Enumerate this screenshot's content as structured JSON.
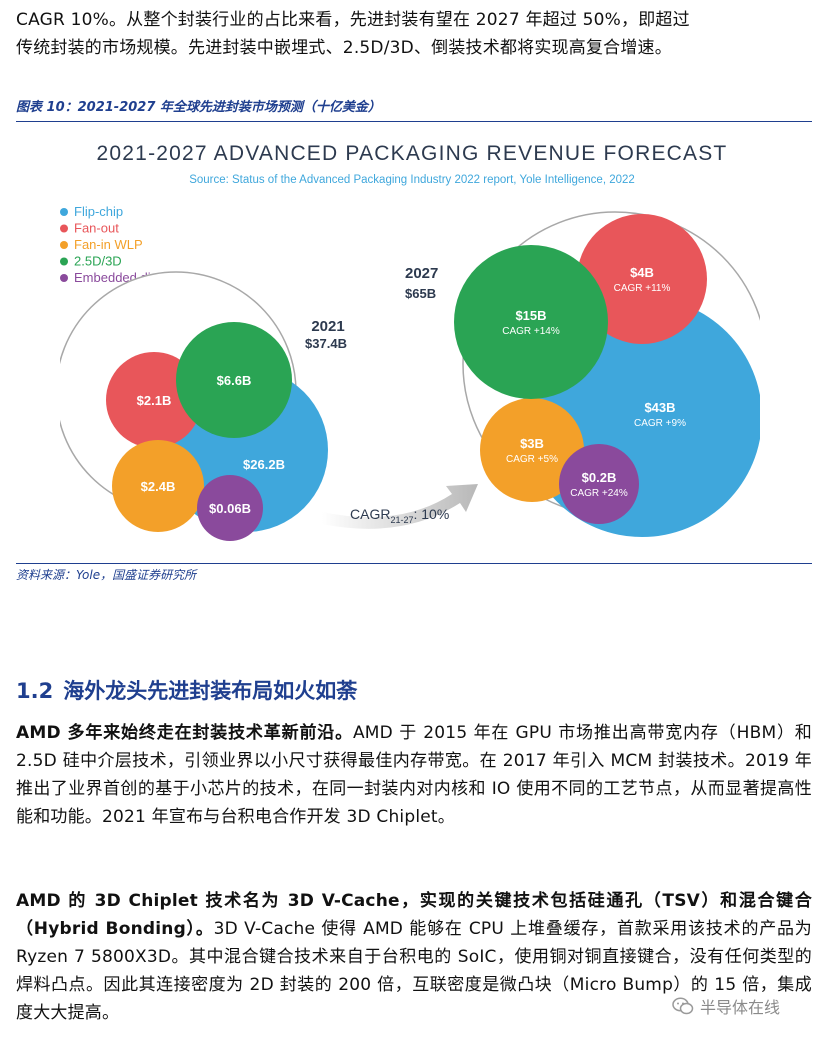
{
  "intro": {
    "line1": "CAGR 10%。从整个封装行业的占比来看，先进封装有望在 2027 年超过 50%，即超过",
    "line2": "传统封装的市场规模。先进封装中嵌埋式、2.5D/3D、倒装技术都将实现高复合增速。"
  },
  "figure": {
    "caption": "图表 10：2021-2027 年全球先进封装市场预测（十亿美金）",
    "source": "资料来源：Yole，国盛证券研究所"
  },
  "chart_data": {
    "type": "bubble",
    "title": "2021-2027 ADVANCED PACKAGING REVENUE FORECAST",
    "subtitle": "Source: Status of the Advanced Packaging Industry 2022 report, Yole Intelligence, 2022",
    "legend_position": "top-left",
    "series": [
      {
        "name": "Flip-chip",
        "color": "#3fa7dc",
        "v2021_label": "$26.2B",
        "v2021": 26.2,
        "v2027_label": "$43B",
        "v2027": 43,
        "cagr": "CAGR +9%"
      },
      {
        "name": "Fan-out",
        "color": "#e8565a",
        "v2021_label": "$2.1B",
        "v2021": 2.1,
        "v2027_label": "$4B",
        "v2027": 4,
        "cagr": "CAGR +11%"
      },
      {
        "name": "Fan-in WLP",
        "color": "#f3a029",
        "v2021_label": "$2.4B",
        "v2021": 2.4,
        "v2027_label": "$3B",
        "v2027": 3,
        "cagr": "CAGR +5%"
      },
      {
        "name": "2.5D/3D",
        "color": "#2aa454",
        "v2021_label": "$6.6B",
        "v2021": 6.6,
        "v2027_label": "$15B",
        "v2027": 15,
        "cagr": "CAGR +14%"
      },
      {
        "name": "Embedded die",
        "color": "#8a4a9c",
        "v2021_label": "$0.06B",
        "v2021": 0.06,
        "v2027_label": "$0.2B",
        "v2027": 0.2,
        "cagr": "CAGR +24%"
      }
    ],
    "totals": [
      {
        "year": "2021",
        "value_label": "$37.4B",
        "value": 37.4
      },
      {
        "year": "2027",
        "value_label": "$65B",
        "value": 65
      }
    ],
    "cagr_arrow": {
      "prefix": "CAGR",
      "subscript": "21-27",
      "value": ": 10%"
    }
  },
  "section": {
    "number": "1.2",
    "title": "海外龙头先进封装布局如火如荼"
  },
  "p1": {
    "lead": "AMD 多年来始终走在封装技术革新前沿。",
    "body": "AMD 于 2015 年在 GPU 市场推出高带宽内存（HBM）和 2.5D 硅中介层技术，引领业界以小尺寸获得最佳内存带宽。在 2017 年引入 MCM 封装技术。2019 年推出了业界首创的基于小芯片的技术，在同一封装内对内核和 IO 使用不同的工艺节点，从而显著提高性能和功能。2021 年宣布与台积电合作开发 3D Chiplet。"
  },
  "p2": {
    "lead": "AMD 的 3D Chiplet 技术名为 3D V-Cache，实现的关键技术包括硅通孔（TSV）和混合键合（Hybrid Bonding）。",
    "body": "3D V-Cache 使得 AMD 能够在 CPU 上堆叠缓存，首款采用该技术的产品为 Ryzen 7 5800X3D。其中混合键合技术来自于台积电的 SoIC，使用铜对铜直接键合，没有任何类型的焊料凸点。因此其连接密度为 2D 封装的 200 倍，互联密度是微凸块（Micro Bump）的 15 倍，集成度大大提高。"
  },
  "watermark": {
    "icon": "wechat-icon",
    "text": "半导体在线"
  }
}
